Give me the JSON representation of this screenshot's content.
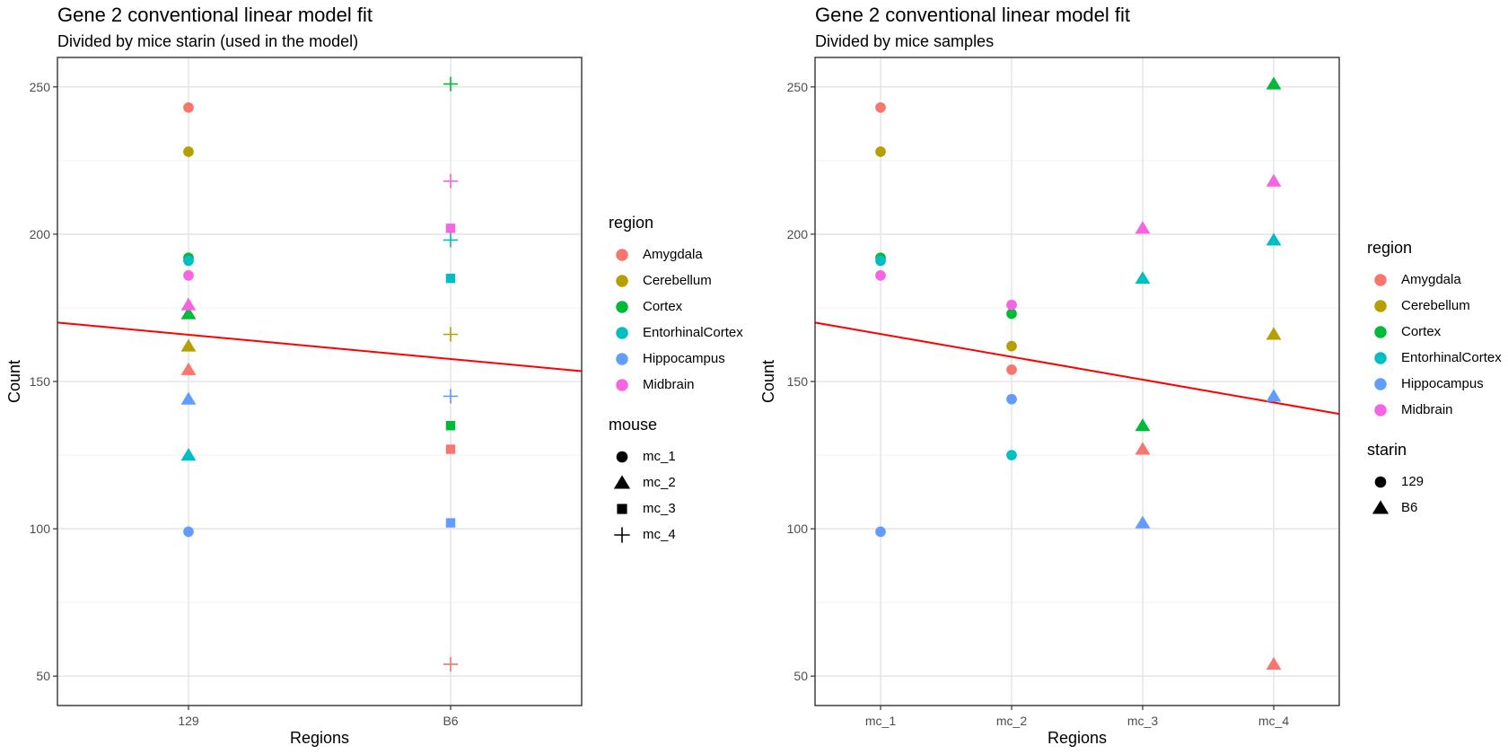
{
  "chart_data": [
    {
      "type": "scatter",
      "title": "Gene 2 conventional linear model fit",
      "subtitle": "Divided by mice starin (used in the model)",
      "xlabel": "Regions",
      "ylabel": "Count",
      "categories": [
        "129",
        "B6"
      ],
      "ylim": [
        40,
        260
      ],
      "yticks": [
        50,
        100,
        150,
        200,
        250
      ],
      "grid": true,
      "fit_line": {
        "color": "#ff0000",
        "y_start": 170,
        "y_end": 153.5
      },
      "legends": [
        {
          "title": "region",
          "entries": [
            "Amygdala",
            "Cerebellum",
            "Cortex",
            "EntorhinalCortex",
            "Hippocampus",
            "Midbrain"
          ]
        },
        {
          "title": "mouse",
          "entries": [
            "mc_1",
            "mc_2",
            "mc_3",
            "mc_4"
          ]
        }
      ],
      "points": [
        {
          "x": "129",
          "region": "Amygdala",
          "group": "mc_1",
          "y": 243
        },
        {
          "x": "129",
          "region": "Cerebellum",
          "group": "mc_1",
          "y": 228
        },
        {
          "x": "129",
          "region": "Cortex",
          "group": "mc_1",
          "y": 192
        },
        {
          "x": "129",
          "region": "EntorhinalCortex",
          "group": "mc_1",
          "y": 191
        },
        {
          "x": "129",
          "region": "Hippocampus",
          "group": "mc_1",
          "y": 99
        },
        {
          "x": "129",
          "region": "Midbrain",
          "group": "mc_1",
          "y": 186
        },
        {
          "x": "129",
          "region": "Amygdala",
          "group": "mc_2",
          "y": 154
        },
        {
          "x": "129",
          "region": "Cerebellum",
          "group": "mc_2",
          "y": 162
        },
        {
          "x": "129",
          "region": "Cortex",
          "group": "mc_2",
          "y": 173
        },
        {
          "x": "129",
          "region": "EntorhinalCortex",
          "group": "mc_2",
          "y": 125
        },
        {
          "x": "129",
          "region": "Hippocampus",
          "group": "mc_2",
          "y": 144
        },
        {
          "x": "129",
          "region": "Midbrain",
          "group": "mc_2",
          "y": 176
        },
        {
          "x": "B6",
          "region": "Amygdala",
          "group": "mc_3",
          "y": 127
        },
        {
          "x": "B6",
          "region": "Cortex",
          "group": "mc_3",
          "y": 135
        },
        {
          "x": "B6",
          "region": "EntorhinalCortex",
          "group": "mc_3",
          "y": 185
        },
        {
          "x": "B6",
          "region": "Hippocampus",
          "group": "mc_3",
          "y": 102
        },
        {
          "x": "B6",
          "region": "Midbrain",
          "group": "mc_3",
          "y": 202
        },
        {
          "x": "B6",
          "region": "Amygdala",
          "group": "mc_4",
          "y": 54
        },
        {
          "x": "B6",
          "region": "Cerebellum",
          "group": "mc_4",
          "y": 166
        },
        {
          "x": "B6",
          "region": "Cortex",
          "group": "mc_4",
          "y": 251
        },
        {
          "x": "B6",
          "region": "EntorhinalCortex",
          "group": "mc_4",
          "y": 198
        },
        {
          "x": "B6",
          "region": "Hippocampus",
          "group": "mc_4",
          "y": 145
        },
        {
          "x": "B6",
          "region": "Midbrain",
          "group": "mc_4",
          "y": 218
        }
      ]
    },
    {
      "type": "scatter",
      "title": "Gene 2 conventional linear model fit",
      "subtitle": "Divided by mice samples",
      "xlabel": "Regions",
      "ylabel": "Count",
      "categories": [
        "mc_1",
        "mc_2",
        "mc_3",
        "mc_4"
      ],
      "ylim": [
        40,
        260
      ],
      "yticks": [
        50,
        100,
        150,
        200,
        250
      ],
      "grid": true,
      "fit_line": {
        "color": "#ff0000",
        "y_start": 170,
        "y_end": 139
      },
      "legends": [
        {
          "title": "region",
          "entries": [
            "Amygdala",
            "Cerebellum",
            "Cortex",
            "EntorhinalCortex",
            "Hippocampus",
            "Midbrain"
          ]
        },
        {
          "title": "starin",
          "entries": [
            "129",
            "B6"
          ]
        }
      ],
      "points": [
        {
          "x": "mc_1",
          "region": "Amygdala",
          "group": "129",
          "y": 243
        },
        {
          "x": "mc_1",
          "region": "Cerebellum",
          "group": "129",
          "y": 228
        },
        {
          "x": "mc_1",
          "region": "Cortex",
          "group": "129",
          "y": 192
        },
        {
          "x": "mc_1",
          "region": "EntorhinalCortex",
          "group": "129",
          "y": 191
        },
        {
          "x": "mc_1",
          "region": "Hippocampus",
          "group": "129",
          "y": 99
        },
        {
          "x": "mc_1",
          "region": "Midbrain",
          "group": "129",
          "y": 186
        },
        {
          "x": "mc_2",
          "region": "Amygdala",
          "group": "129",
          "y": 154
        },
        {
          "x": "mc_2",
          "region": "Cerebellum",
          "group": "129",
          "y": 162
        },
        {
          "x": "mc_2",
          "region": "Cortex",
          "group": "129",
          "y": 173
        },
        {
          "x": "mc_2",
          "region": "EntorhinalCortex",
          "group": "129",
          "y": 125
        },
        {
          "x": "mc_2",
          "region": "Hippocampus",
          "group": "129",
          "y": 144
        },
        {
          "x": "mc_2",
          "region": "Midbrain",
          "group": "129",
          "y": 176
        },
        {
          "x": "mc_3",
          "region": "Amygdala",
          "group": "B6",
          "y": 127
        },
        {
          "x": "mc_3",
          "region": "Cortex",
          "group": "B6",
          "y": 135
        },
        {
          "x": "mc_3",
          "region": "EntorhinalCortex",
          "group": "B6",
          "y": 185
        },
        {
          "x": "mc_3",
          "region": "Hippocampus",
          "group": "B6",
          "y": 102
        },
        {
          "x": "mc_3",
          "region": "Midbrain",
          "group": "B6",
          "y": 202
        },
        {
          "x": "mc_4",
          "region": "Amygdala",
          "group": "B6",
          "y": 54
        },
        {
          "x": "mc_4",
          "region": "Cerebellum",
          "group": "B6",
          "y": 166
        },
        {
          "x": "mc_4",
          "region": "Cortex",
          "group": "B6",
          "y": 251
        },
        {
          "x": "mc_4",
          "region": "EntorhinalCortex",
          "group": "B6",
          "y": 198
        },
        {
          "x": "mc_4",
          "region": "Hippocampus",
          "group": "B6",
          "y": 145
        },
        {
          "x": "mc_4",
          "region": "Midbrain",
          "group": "B6",
          "y": 218
        }
      ]
    }
  ],
  "colors": {
    "Amygdala": "#f8766d",
    "Cerebellum": "#b79f00",
    "Cortex": "#00ba38",
    "EntorhinalCortex": "#00bfc4",
    "Hippocampus": "#619cff",
    "Midbrain": "#f564e3"
  },
  "shapes": {
    "left": {
      "mc_1": "circle",
      "mc_2": "triangle",
      "mc_3": "square",
      "mc_4": "plus"
    },
    "right": {
      "129": "circle",
      "B6": "triangle"
    }
  }
}
